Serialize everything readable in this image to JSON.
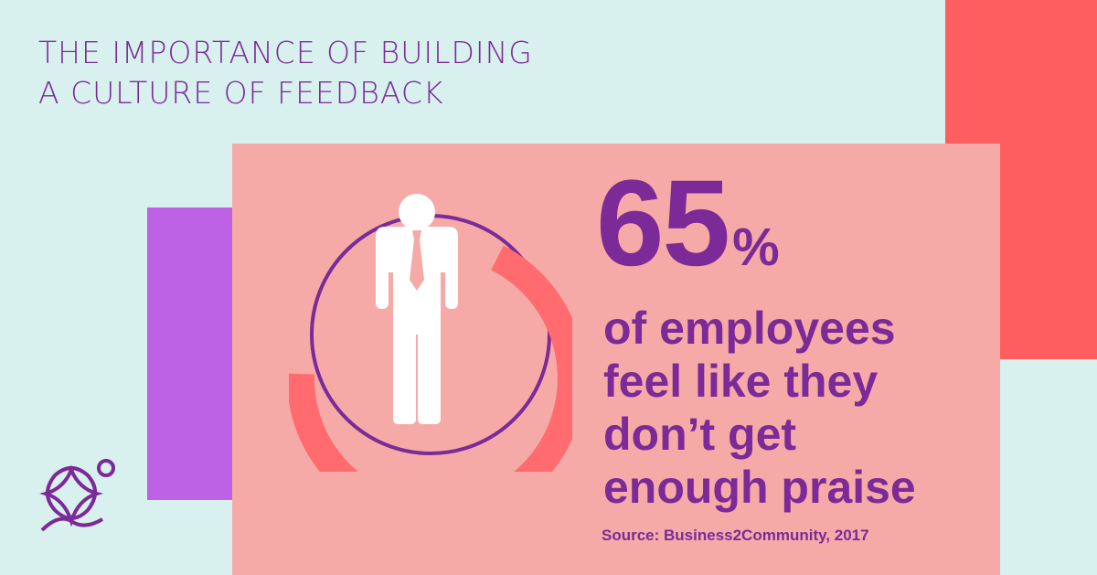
{
  "header": {
    "title_line1": "THE IMPORTANCE OF BUILDING",
    "title_line2": "A CULTURE OF FEEDBACK"
  },
  "stat": {
    "value": "65",
    "unit": "%",
    "lines": [
      "of employees",
      "feel like they",
      "don’t get",
      "enough praise"
    ],
    "source": "Source: Business2Community, 2017"
  },
  "icons": {
    "figure": "businessman-icon",
    "ring": "progress-ring",
    "logo": "star-logo-icon"
  },
  "colors": {
    "purple_text": "#7b2a97",
    "background": "#d8f0ee",
    "coral": "#ff5e61",
    "pink_card": "#f5aaa7",
    "violet": "#bd61e5"
  }
}
